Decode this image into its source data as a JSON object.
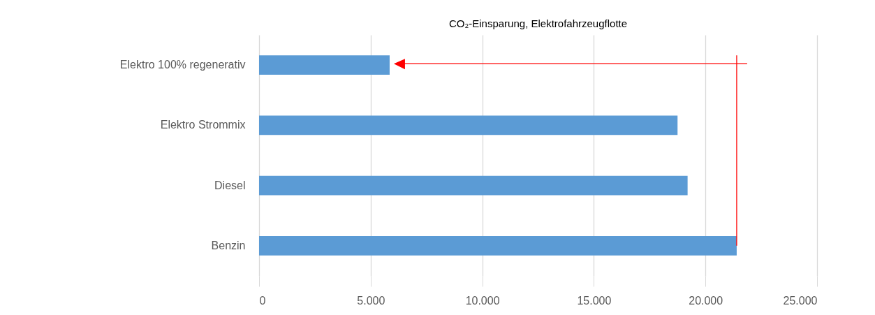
{
  "chart_data": {
    "type": "bar",
    "orientation": "horizontal",
    "title": "CO₂-Einsparung, Elektrofahrzeugflotte",
    "categories": [
      "Elektro 100% regenerativ",
      "Elektro Strommix",
      "Diesel",
      "Benzin"
    ],
    "values": [
      5850,
      18750,
      19200,
      21400
    ],
    "color": "#5b9bd5",
    "xlim": [
      0,
      25000
    ],
    "xticks": [
      {
        "value": 0,
        "label": "0"
      },
      {
        "value": 5000,
        "label": "5.000"
      },
      {
        "value": 10000,
        "label": "10.000"
      },
      {
        "value": 15000,
        "label": "15.000"
      },
      {
        "value": 20000,
        "label": "20.000"
      },
      {
        "value": 25000,
        "label": "25.000"
      }
    ],
    "grid": "x",
    "ref_lines": [
      {
        "axis": "x",
        "value": 21400,
        "color": "#ff0000"
      }
    ]
  }
}
